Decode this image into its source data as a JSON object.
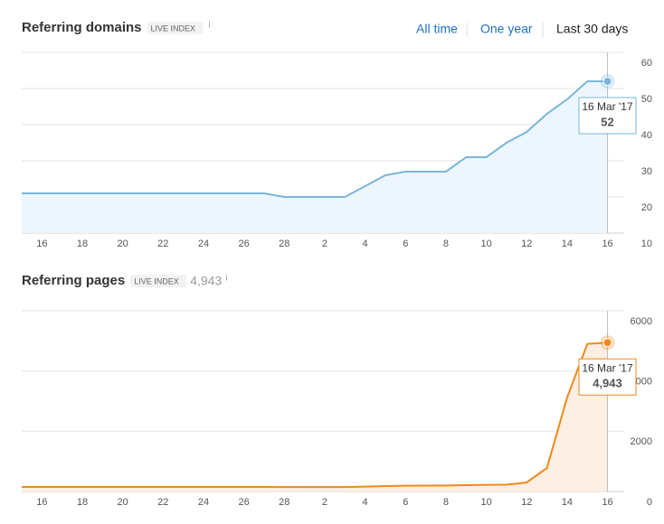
{
  "controls": [
    "All time",
    "One year",
    "Last 30 days"
  ],
  "chart_data": [
    {
      "type": "area",
      "title": "Referring domains",
      "badge": "LIVE INDEX",
      "info": "i",
      "categories": [
        null,
        "16",
        null,
        "18",
        null,
        "20",
        null,
        "22",
        null,
        "24",
        null,
        "26",
        null,
        "28",
        null,
        "2",
        null,
        "4",
        null,
        "6",
        null,
        "8",
        null,
        "10",
        null,
        "12",
        null,
        "14",
        null,
        "16"
      ],
      "series": [
        {
          "name": "Referring domains",
          "color": "#7ab6d9",
          "fill": "#eef6fd",
          "values": [
            21,
            21,
            21,
            21,
            21,
            21,
            21,
            21,
            21,
            21,
            21,
            21,
            21,
            20,
            20,
            20,
            20,
            23,
            26,
            27,
            27,
            27,
            31,
            31,
            35,
            38,
            43,
            47,
            52,
            52
          ]
        }
      ],
      "ylim": [
        10,
        60
      ],
      "yticks": [
        10,
        20,
        30,
        40,
        50,
        60
      ],
      "grid": true,
      "tooltip": {
        "date": "16 Mar '17"
      }
    },
    {
      "type": "area",
      "title": "Referring pages",
      "badge": "LIVE INDEX",
      "info": "i",
      "total_label": "4,943",
      "categories": [
        null,
        "16",
        null,
        "18",
        null,
        "20",
        null,
        "22",
        null,
        "24",
        null,
        "26",
        null,
        "28",
        null,
        "2",
        null,
        "4",
        null,
        "6",
        null,
        "8",
        null,
        "10",
        null,
        "12",
        null,
        "14",
        null,
        "16"
      ],
      "series": [
        {
          "name": "Referring pages",
          "color": "#f0891c",
          "fill": "#fdefe3",
          "values": [
            150,
            150,
            150,
            150,
            150,
            150,
            150,
            150,
            150,
            150,
            150,
            150,
            150,
            145,
            145,
            145,
            145,
            160,
            180,
            190,
            195,
            200,
            210,
            220,
            225,
            300,
            780,
            3120,
            4900,
            4943
          ]
        }
      ],
      "ylim": [
        0,
        6000
      ],
      "yticks": [
        0,
        2000,
        4000,
        6000
      ],
      "grid": true,
      "tooltip": {
        "date": "16 Mar '17",
        "value_label": "4,943"
      }
    }
  ]
}
